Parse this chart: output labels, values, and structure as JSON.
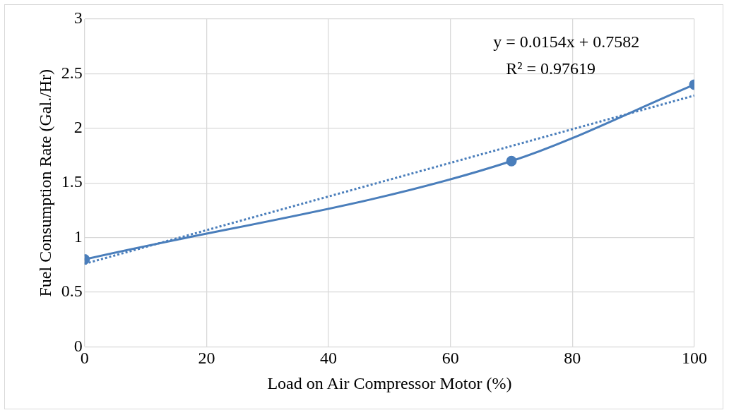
{
  "chart_data": {
    "type": "line",
    "xlabel": "Load on Air Compressor Motor (%)",
    "ylabel": "Fuel Consumption Rate (Gal./Hr)",
    "xlim": [
      0,
      100
    ],
    "xticks": [
      0,
      20,
      40,
      60,
      80,
      100
    ],
    "ylim": [
      0,
      3
    ],
    "yticks": [
      0,
      0.5,
      1,
      1.5,
      2,
      2.5,
      3
    ],
    "grid": true,
    "marker": "circle",
    "line_style": "solid",
    "series": [
      {
        "color": "#4a7ebb",
        "x": [
          0,
          70,
          100
        ],
        "values": [
          0.8,
          1.7,
          2.4
        ]
      },
      {
        "color": "#4a7ebb",
        "x": [
          0,
          100
        ],
        "values": [
          0.76,
          2.3
        ],
        "marker": "none",
        "line_style": "dotted"
      }
    ],
    "annotations": [
      "y = 0.0154x + 0.7582",
      "R² = 0.97619"
    ]
  }
}
